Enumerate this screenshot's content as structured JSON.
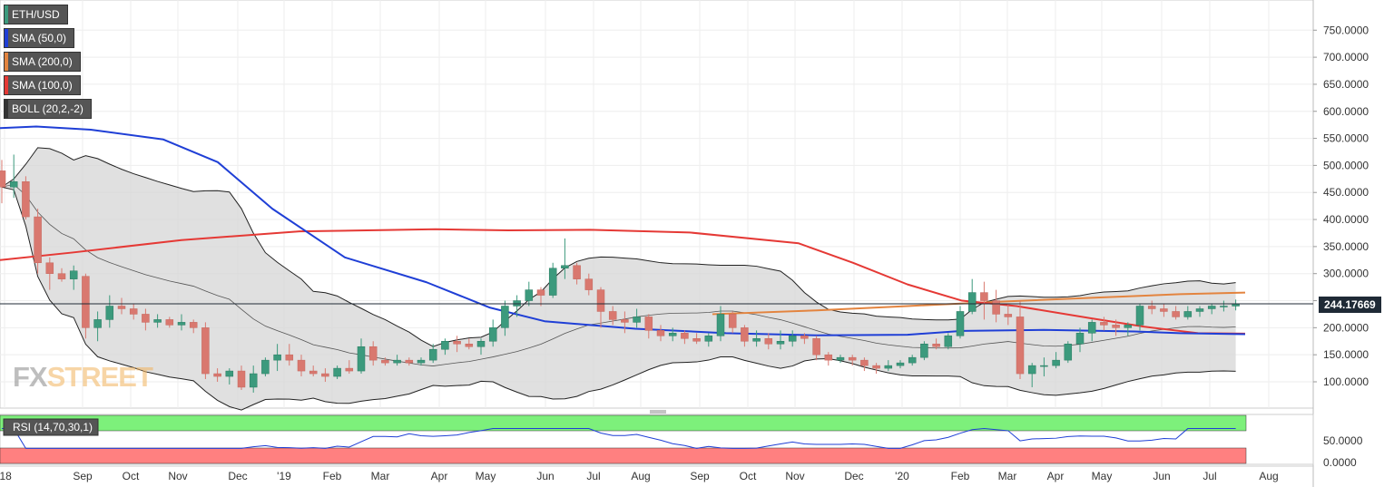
{
  "chart_data": {
    "type": "candlestick",
    "title": "ETH/USD",
    "timeframe": "weekly",
    "y_axis": {
      "ticks": [
        "100.0000",
        "150.0000",
        "200.0000",
        "250.0000",
        "300.0000",
        "350.0000",
        "400.0000",
        "450.0000",
        "500.0000",
        "550.0000",
        "600.0000",
        "650.0000",
        "700.0000",
        "750.0000"
      ]
    },
    "x_axis": {
      "labels": [
        "'18",
        "Sep",
        "Oct",
        "Nov",
        "Dec",
        "'19",
        "Feb",
        "Mar",
        "Apr",
        "May",
        "Jun",
        "Jul",
        "Aug",
        "Sep",
        "Oct",
        "Nov",
        "Dec",
        "'20",
        "Feb",
        "Mar",
        "Apr",
        "May",
        "Jun",
        "Jul",
        "Aug"
      ]
    },
    "current_price": "244.17669",
    "candles": [
      [
        490,
        510,
        430,
        460
      ],
      [
        460,
        520,
        440,
        470
      ],
      [
        470,
        480,
        400,
        405
      ],
      [
        405,
        420,
        300,
        320
      ],
      [
        320,
        330,
        270,
        300
      ],
      [
        300,
        310,
        285,
        290
      ],
      [
        290,
        315,
        270,
        305
      ],
      [
        295,
        300,
        180,
        200
      ],
      [
        200,
        230,
        175,
        215
      ],
      [
        215,
        260,
        200,
        240
      ],
      [
        240,
        255,
        225,
        235
      ],
      [
        235,
        245,
        215,
        225
      ],
      [
        225,
        235,
        195,
        210
      ],
      [
        210,
        225,
        200,
        215
      ],
      [
        215,
        220,
        200,
        205
      ],
      [
        205,
        225,
        195,
        210
      ],
      [
        210,
        215,
        190,
        200
      ],
      [
        200,
        210,
        105,
        115
      ],
      [
        115,
        125,
        100,
        110
      ],
      [
        110,
        125,
        95,
        120
      ],
      [
        120,
        130,
        85,
        90
      ],
      [
        90,
        130,
        80,
        115
      ],
      [
        115,
        145,
        110,
        140
      ],
      [
        140,
        170,
        120,
        150
      ],
      [
        150,
        170,
        130,
        140
      ],
      [
        140,
        150,
        110,
        120
      ],
      [
        120,
        130,
        110,
        115
      ],
      [
        115,
        125,
        100,
        110
      ],
      [
        110,
        130,
        105,
        125
      ],
      [
        125,
        140,
        115,
        120
      ],
      [
        120,
        180,
        115,
        165
      ],
      [
        165,
        175,
        130,
        140
      ],
      [
        140,
        145,
        130,
        135
      ],
      [
        135,
        150,
        130,
        140
      ],
      [
        140,
        145,
        130,
        135
      ],
      [
        135,
        145,
        130,
        140
      ],
      [
        140,
        170,
        135,
        160
      ],
      [
        160,
        180,
        150,
        175
      ],
      [
        175,
        185,
        155,
        170
      ],
      [
        170,
        180,
        160,
        165
      ],
      [
        165,
        180,
        150,
        175
      ],
      [
        175,
        215,
        165,
        200
      ],
      [
        200,
        250,
        185,
        240
      ],
      [
        240,
        260,
        220,
        250
      ],
      [
        250,
        285,
        240,
        270
      ],
      [
        270,
        275,
        240,
        260
      ],
      [
        260,
        320,
        255,
        310
      ],
      [
        310,
        365,
        290,
        315
      ],
      [
        315,
        320,
        280,
        290
      ],
      [
        290,
        300,
        260,
        270
      ],
      [
        270,
        275,
        200,
        230
      ],
      [
        230,
        240,
        205,
        215
      ],
      [
        215,
        230,
        190,
        210
      ],
      [
        210,
        235,
        200,
        220
      ],
      [
        220,
        225,
        180,
        195
      ],
      [
        195,
        205,
        175,
        185
      ],
      [
        185,
        200,
        175,
        190
      ],
      [
        190,
        195,
        170,
        180
      ],
      [
        180,
        190,
        170,
        175
      ],
      [
        175,
        190,
        165,
        185
      ],
      [
        185,
        240,
        175,
        225
      ],
      [
        225,
        230,
        190,
        200
      ],
      [
        200,
        205,
        165,
        175
      ],
      [
        175,
        195,
        165,
        180
      ],
      [
        180,
        190,
        160,
        170
      ],
      [
        170,
        195,
        160,
        175
      ],
      [
        175,
        195,
        165,
        185
      ],
      [
        185,
        190,
        170,
        180
      ],
      [
        180,
        185,
        140,
        150
      ],
      [
        150,
        155,
        130,
        140
      ],
      [
        140,
        150,
        135,
        145
      ],
      [
        145,
        150,
        130,
        140
      ],
      [
        140,
        145,
        120,
        130
      ],
      [
        130,
        135,
        115,
        125
      ],
      [
        125,
        140,
        120,
        130
      ],
      [
        130,
        140,
        125,
        135
      ],
      [
        135,
        150,
        130,
        145
      ],
      [
        145,
        175,
        140,
        170
      ],
      [
        170,
        180,
        160,
        165
      ],
      [
        165,
        190,
        160,
        185
      ],
      [
        185,
        240,
        180,
        230
      ],
      [
        230,
        290,
        225,
        265
      ],
      [
        265,
        285,
        215,
        250
      ],
      [
        250,
        270,
        210,
        225
      ],
      [
        225,
        245,
        205,
        220
      ],
      [
        220,
        250,
        105,
        115
      ],
      [
        115,
        135,
        90,
        130
      ],
      [
        130,
        145,
        110,
        130
      ],
      [
        130,
        155,
        125,
        140
      ],
      [
        140,
        175,
        135,
        170
      ],
      [
        170,
        200,
        155,
        190
      ],
      [
        190,
        215,
        175,
        210
      ],
      [
        210,
        220,
        195,
        205
      ],
      [
        205,
        215,
        185,
        200
      ],
      [
        200,
        210,
        185,
        205
      ],
      [
        205,
        245,
        195,
        240
      ],
      [
        240,
        250,
        225,
        235
      ],
      [
        235,
        245,
        220,
        230
      ],
      [
        230,
        240,
        215,
        220
      ],
      [
        220,
        240,
        215,
        230
      ],
      [
        230,
        240,
        220,
        235
      ],
      [
        235,
        245,
        225,
        240
      ],
      [
        240,
        250,
        230,
        240
      ],
      [
        240,
        252,
        232,
        244
      ]
    ]
  },
  "legend": {
    "items": [
      {
        "label": "ETH/USD",
        "color": "#3c9a7d"
      },
      {
        "label": "SMA (50,0)",
        "color": "#1f3fd6"
      },
      {
        "label": "SMA (200,0)",
        "color": "#e3843f"
      },
      {
        "label": "SMA (100,0)",
        "color": "#e53935"
      },
      {
        "label": "BOLL (20,2,-2)",
        "color": "#333333"
      }
    ]
  },
  "rsi": {
    "label": "RSI (14,70,30,1)",
    "ticks": [
      "50.0000",
      "0.0000"
    ],
    "overbought_color": "#7df07b",
    "oversold_color": "#ff8080"
  },
  "colors": {
    "bull": "#3c9a7d",
    "bear": "#d9786f",
    "sma50": "#1f3fd6",
    "sma100": "#e53935",
    "sma200": "#e3843f"
  },
  "watermark": {
    "fx": "FX",
    "rest": "STREET"
  }
}
